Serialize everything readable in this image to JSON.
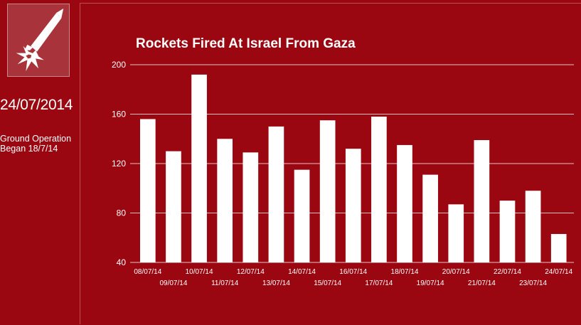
{
  "sidebar": {
    "logo_icon": "rocket-icon",
    "date": "24/07/2014",
    "note_line1": "Ground Operation",
    "note_line2": "Began 18/7/14"
  },
  "colors": {
    "background": "#9a0711",
    "bars": "#ffffff",
    "grid": "#ffffff"
  },
  "chart_data": {
    "type": "bar",
    "title": "Rockets Fired At Israel From Gaza",
    "xlabel": "",
    "ylabel": "",
    "ylim": [
      40,
      200
    ],
    "yticks": [
      40,
      80,
      120,
      160,
      200
    ],
    "grid": true,
    "categories": [
      "08/07/14",
      "09/07/14",
      "10/07/14",
      "11/07/14",
      "12/07/14",
      "13/07/14",
      "14/07/14",
      "15/07/14",
      "16/07/14",
      "17/07/14",
      "18/07/14",
      "19/07/14",
      "20/07/14",
      "21/07/14",
      "22/07/14",
      "23/07/14",
      "24/07/14"
    ],
    "values": [
      156,
      130,
      192,
      140,
      129,
      150,
      115,
      155,
      132,
      158,
      135,
      111,
      87,
      139,
      90,
      98,
      63
    ]
  }
}
